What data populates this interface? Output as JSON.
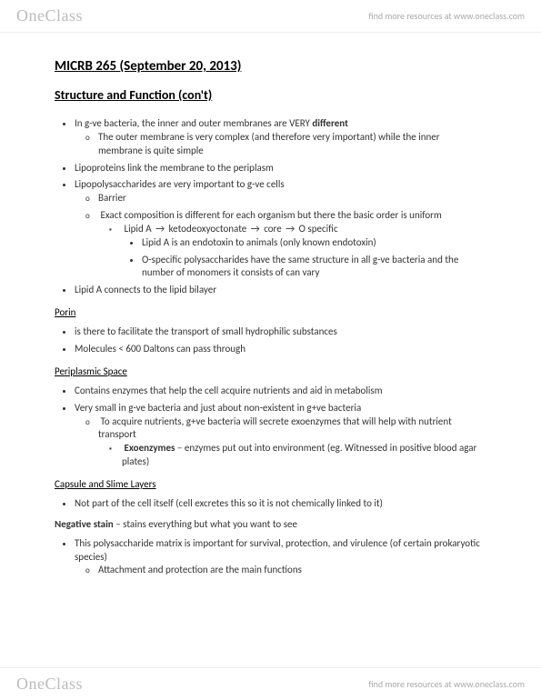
{
  "brand": "OneClass",
  "tagline": "find more resources at www.oneclass.com",
  "title": "MICRB 265 (September 20, 2013)",
  "section": "Structure and Function (con't)",
  "bullets1": {
    "a": "In g-ve bacteria, the inner and outer membranes are VERY ",
    "a_bold": "different",
    "a_sub": "The outer membrane is very complex (and therefore very important) while the inner membrane is quite simple",
    "b": "Lipoproteins link the membrane to the periplasm",
    "c": "Lipopolysaccharides are very important to g-ve cells",
    "c_sub1": "Barrier",
    "c_sub2": "Exact composition is different for each organism but there the basic order is uniform",
    "c_sub2_a_pre": "Lipid A ",
    "c_sub2_a_mid1": " ketodeoxyoctonate ",
    "c_sub2_a_mid2": " core ",
    "c_sub2_a_end": " O specific",
    "c_sub2_a_i": "Lipid A is an endotoxin to animals (only known endotoxin)",
    "c_sub2_a_ii": "O-specific polysaccharides have the same structure in all g-ve bacteria and the number of monomers it consists of can vary",
    "d": "Lipid A connects to the lipid bilayer"
  },
  "porin": {
    "head": "Porin",
    "a": "is there to facilitate the transport of small hydrophilic substances",
    "b": "Molecules < 600 Daltons can pass through"
  },
  "periplasm": {
    "head": "Periplasmic Space",
    "a": "Contains enzymes that help the cell acquire nutrients and aid in metabolism",
    "b": "Very small in g-ve bacteria and just about non-existent in g+ve bacteria",
    "b_sub": "To acquire nutrients, g+ve bacteria will secrete exoenzymes that will help with nutrient transport",
    "b_sub_a_bold": "Exoenzymes",
    "b_sub_a_rest": " – enzymes put out into environment (eg. Witnessed in positive blood agar plates)"
  },
  "capsule": {
    "head": "Capsule and Slime Layers",
    "a": "Not part of the cell itself (cell excretes this so it is not chemically linked to it)"
  },
  "negstain": {
    "lead_bold": "Negative stain",
    "lead_rest": " – stains everything but what you want to see",
    "a": "This polysaccharide matrix is important for survival, protection, and virulence (of certain prokaryotic species)",
    "a_sub": "Attachment and protection are the main functions"
  },
  "arrow": "→"
}
